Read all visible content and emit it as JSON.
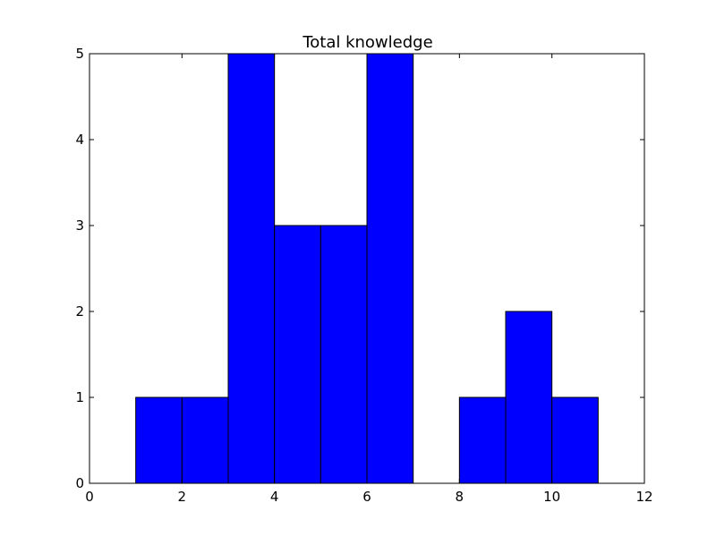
{
  "chart_data": {
    "type": "bar",
    "title": "Total knowledge",
    "xlabel": "",
    "ylabel": "",
    "xlim": [
      0,
      12
    ],
    "ylim": [
      0,
      5
    ],
    "xticks": [
      0,
      2,
      4,
      6,
      8,
      10,
      12
    ],
    "yticks": [
      0,
      1,
      2,
      3,
      4,
      5
    ],
    "grid": false,
    "bar_color": "#0000ff",
    "edge_color": "#000000",
    "bins": [
      {
        "x0": 1,
        "x1": 2,
        "value": 1
      },
      {
        "x0": 2,
        "x1": 3,
        "value": 1
      },
      {
        "x0": 3,
        "x1": 4,
        "value": 5
      },
      {
        "x0": 4,
        "x1": 5,
        "value": 3
      },
      {
        "x0": 5,
        "x1": 6,
        "value": 3
      },
      {
        "x0": 6,
        "x1": 7,
        "value": 5
      },
      {
        "x0": 7,
        "x1": 8,
        "value": 0
      },
      {
        "x0": 8,
        "x1": 9,
        "value": 1
      },
      {
        "x0": 9,
        "x1": 10,
        "value": 2
      },
      {
        "x0": 10,
        "x1": 11,
        "value": 1
      }
    ]
  }
}
